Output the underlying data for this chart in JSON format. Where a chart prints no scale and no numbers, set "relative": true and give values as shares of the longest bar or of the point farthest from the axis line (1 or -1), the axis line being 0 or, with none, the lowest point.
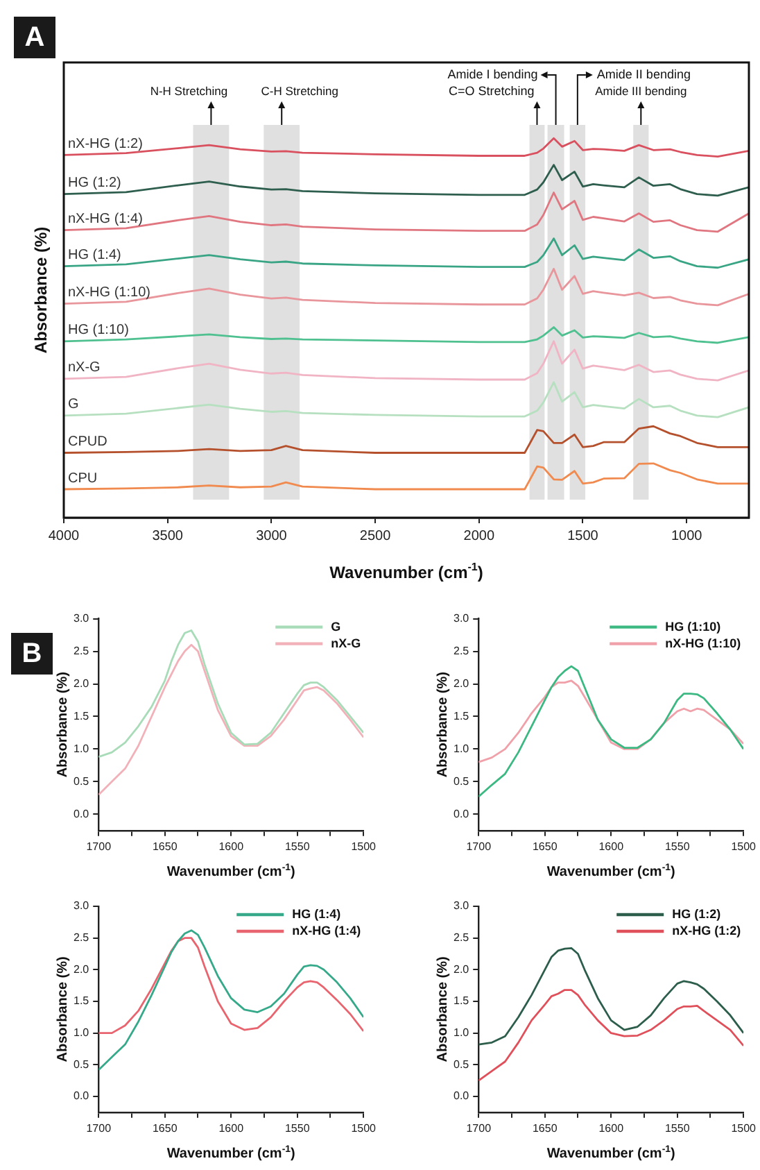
{
  "chart_data": [
    {
      "type": "line",
      "title": "A",
      "xlabel": "Wavenumber (cm$^{-1}$)",
      "ylabel": "Absorbance (%)",
      "relative": true,
      "x": [
        4000,
        3700,
        3450,
        3300,
        3150,
        3000,
        2930,
        2850,
        2500,
        2000,
        1780,
        1720,
        1690,
        1640,
        1600,
        1540,
        1500,
        1450,
        1400,
        1300,
        1230,
        1160,
        1080,
        1030,
        950,
        850,
        700
      ],
      "xlim": [
        4000,
        700
      ],
      "xticks": [
        4000,
        3500,
        3000,
        2500,
        2000,
        1500,
        1000
      ],
      "series": [
        {
          "name": "nX-HG (1:2)",
          "color": "#d9505f",
          "values": [
            0.956,
            0.961,
            0.974,
            0.982,
            0.971,
            0.965,
            0.966,
            0.962,
            0.958,
            0.954,
            0.954,
            0.962,
            0.973,
            1,
            0.978,
            0.993,
            0.969,
            0.972,
            0.971,
            0.967,
            0.982,
            0.969,
            0.971,
            0.964,
            0.956,
            0.952,
            0.967
          ]
        },
        {
          "name": "HG (1:2)",
          "color": "#2e5e4e",
          "values": [
            0.853,
            0.858,
            0.876,
            0.886,
            0.873,
            0.865,
            0.866,
            0.861,
            0.855,
            0.851,
            0.851,
            0.865,
            0.884,
            0.93,
            0.89,
            0.912,
            0.873,
            0.879,
            0.876,
            0.871,
            0.897,
            0.875,
            0.879,
            0.866,
            0.853,
            0.849,
            0.871
          ]
        },
        {
          "name": "nX-HG (1:4)",
          "color": "#e07680",
          "values": [
            0.758,
            0.763,
            0.784,
            0.795,
            0.78,
            0.771,
            0.773,
            0.767,
            0.76,
            0.756,
            0.756,
            0.773,
            0.798,
            0.857,
            0.813,
            0.835,
            0.785,
            0.793,
            0.789,
            0.781,
            0.802,
            0.78,
            0.784,
            0.771,
            0.758,
            0.754,
            0.802
          ]
        },
        {
          "name": "HG (1:4)",
          "color": "#3aa585",
          "values": [
            0.663,
            0.668,
            0.683,
            0.692,
            0.681,
            0.673,
            0.675,
            0.67,
            0.665,
            0.661,
            0.661,
            0.674,
            0.692,
            0.736,
            0.692,
            0.718,
            0.682,
            0.688,
            0.685,
            0.679,
            0.707,
            0.685,
            0.689,
            0.676,
            0.663,
            0.659,
            0.681
          ]
        },
        {
          "name": "nX-HG (1:10)",
          "color": "#e8969b",
          "values": [
            0.564,
            0.569,
            0.592,
            0.604,
            0.588,
            0.578,
            0.58,
            0.574,
            0.566,
            0.562,
            0.562,
            0.578,
            0.601,
            0.656,
            0.601,
            0.637,
            0.59,
            0.597,
            0.593,
            0.586,
            0.593,
            0.579,
            0.582,
            0.573,
            0.564,
            0.56,
            0.59
          ]
        },
        {
          "name": "HG (1:10)",
          "color": "#4fc090",
          "values": [
            0.465,
            0.47,
            0.478,
            0.483,
            0.476,
            0.471,
            0.472,
            0.47,
            0.467,
            0.463,
            0.463,
            0.47,
            0.48,
            0.502,
            0.48,
            0.494,
            0.475,
            0.478,
            0.477,
            0.474,
            0.487,
            0.476,
            0.478,
            0.472,
            0.465,
            0.461,
            0.476
          ]
        },
        {
          "name": "nX-G",
          "color": "#f0b4c4",
          "values": [
            0.366,
            0.371,
            0.394,
            0.406,
            0.39,
            0.38,
            0.382,
            0.376,
            0.368,
            0.364,
            0.364,
            0.381,
            0.406,
            0.465,
            0.406,
            0.443,
            0.393,
            0.401,
            0.397,
            0.389,
            0.403,
            0.384,
            0.388,
            0.377,
            0.366,
            0.362,
            0.388
          ]
        },
        {
          "name": "G",
          "color": "#b6e0c0",
          "values": [
            0.269,
            0.274,
            0.289,
            0.298,
            0.287,
            0.279,
            0.281,
            0.276,
            0.271,
            0.267,
            0.267,
            0.282,
            0.304,
            0.357,
            0.306,
            0.331,
            0.291,
            0.297,
            0.294,
            0.288,
            0.313,
            0.291,
            0.295,
            0.282,
            0.269,
            0.265,
            0.291
          ]
        },
        {
          "name": "CPUD",
          "color": "#b5502c",
          "values": [
            0.171,
            0.173,
            0.176,
            0.181,
            0.176,
            0.178,
            0.189,
            0.178,
            0.171,
            0.171,
            0.171,
            0.231,
            0.228,
            0.197,
            0.197,
            0.219,
            0.186,
            0.189,
            0.199,
            0.199,
            0.235,
            0.241,
            0.222,
            0.215,
            0.197,
            0.186,
            0.186
          ]
        },
        {
          "name": "CPU",
          "color": "#f08a4e",
          "values": [
            0.075,
            0.077,
            0.08,
            0.085,
            0.08,
            0.082,
            0.093,
            0.082,
            0.075,
            0.075,
            0.075,
            0.135,
            0.132,
            0.101,
            0.1,
            0.123,
            0.09,
            0.093,
            0.103,
            0.104,
            0.142,
            0.143,
            0.125,
            0.118,
            0.101,
            0.09,
            0.09
          ]
        }
      ],
      "bands": [
        {
          "axis": "x",
          "from": 3377,
          "to": 3204,
          "label": "N-H Stretching",
          "color": "#e0e0e0"
        },
        {
          "axis": "x",
          "from": 3037,
          "to": 2864,
          "label": "C-H Stretching",
          "color": "#e0e0e0"
        },
        {
          "axis": "x",
          "from": 1757,
          "to": 1684,
          "label": "C=O Stretching",
          "color": "#e0e0e0"
        },
        {
          "axis": "x",
          "from": 1670,
          "to": 1590,
          "label": "Amide I bending",
          "color": "#e0e0e0"
        },
        {
          "axis": "x",
          "from": 1563,
          "to": 1488,
          "label": "Amide II bending",
          "color": "#e0e0e0"
        },
        {
          "axis": "x",
          "from": 1257,
          "to": 1183,
          "label": "Amide III bending",
          "color": "#e0e0e0"
        }
      ]
    },
    {
      "type": "line",
      "title": "B",
      "xlabel": "Wavenumber (cm$^{-1}$)",
      "ylabel": "Absorbance (%)",
      "legend": "top right",
      "x": [
        1700,
        1690,
        1680,
        1670,
        1660,
        1650,
        1645,
        1640,
        1635,
        1630,
        1625,
        1620,
        1610,
        1600,
        1590,
        1580,
        1570,
        1560,
        1550,
        1545,
        1540,
        1535,
        1530,
        1520,
        1510,
        1500
      ],
      "xlim": [
        1700,
        1500
      ],
      "xticks": [
        1700,
        {
          "value": 1675,
          "label": null
        },
        1650,
        {
          "value": 1625,
          "label": null
        },
        1600,
        {
          "value": 1575,
          "label": null
        },
        1550,
        {
          "value": 1525,
          "label": null
        },
        1500
      ],
      "ylim": [
        -0.25,
        3
      ],
      "yticks": [
        {
          "value": 0,
          "label": "0.0"
        },
        0.5,
        {
          "value": 1,
          "label": "1.0"
        },
        1.5,
        {
          "value": 2,
          "label": "2.0"
        },
        2.5,
        {
          "value": 3,
          "label": "3.0"
        }
      ],
      "series": [
        {
          "name": "G",
          "color": "#a8dcb8",
          "values": [
            0.88,
            0.95,
            1.1,
            1.35,
            1.65,
            2.05,
            2.35,
            2.6,
            2.78,
            2.82,
            2.65,
            2.3,
            1.7,
            1.25,
            1.07,
            1.08,
            1.25,
            1.55,
            1.85,
            1.98,
            2.02,
            2.02,
            1.95,
            1.75,
            1.5,
            1.25
          ]
        },
        {
          "name": "nX-G",
          "color": "#f2b0b8",
          "values": [
            0.3,
            0.5,
            0.7,
            1.05,
            1.5,
            1.95,
            2.15,
            2.35,
            2.5,
            2.6,
            2.5,
            2.2,
            1.6,
            1.2,
            1.05,
            1.05,
            1.2,
            1.45,
            1.75,
            1.9,
            1.93,
            1.95,
            1.9,
            1.7,
            1.45,
            1.18
          ]
        }
      ]
    },
    {
      "type": "line",
      "xlabel": "Wavenumber (cm$^{-1}$)",
      "ylabel": "Absorbance (%)",
      "legend": "top right",
      "x": [
        1700,
        1690,
        1680,
        1670,
        1660,
        1650,
        1645,
        1640,
        1635,
        1630,
        1625,
        1620,
        1610,
        1600,
        1590,
        1580,
        1570,
        1560,
        1550,
        1545,
        1540,
        1535,
        1530,
        1520,
        1510,
        1500
      ],
      "xlim": [
        1700,
        1500
      ],
      "xticks": [
        1700,
        {
          "value": 1675,
          "label": null
        },
        1650,
        {
          "value": 1625,
          "label": null
        },
        1600,
        {
          "value": 1575,
          "label": null
        },
        1550,
        {
          "value": 1525,
          "label": null
        },
        1500
      ],
      "ylim": [
        -0.25,
        3
      ],
      "yticks": [
        {
          "value": 0,
          "label": "0.0"
        },
        0.5,
        {
          "value": 1,
          "label": "1.0"
        },
        1.5,
        {
          "value": 2,
          "label": "2.0"
        },
        2.5,
        {
          "value": 3,
          "label": "3.0"
        }
      ],
      "series": [
        {
          "name": "HG (1:10)",
          "color": "#3cb882",
          "values": [
            0.27,
            0.45,
            0.62,
            0.95,
            1.35,
            1.75,
            1.95,
            2.1,
            2.2,
            2.27,
            2.2,
            1.95,
            1.45,
            1.15,
            1.02,
            1.02,
            1.15,
            1.4,
            1.75,
            1.85,
            1.85,
            1.84,
            1.78,
            1.55,
            1.3,
            1
          ]
        },
        {
          "name": "nX-HG (1:10)",
          "color": "#f0a0a8",
          "values": [
            0.8,
            0.87,
            1,
            1.25,
            1.55,
            1.8,
            1.95,
            2.02,
            2.02,
            2.05,
            1.97,
            1.8,
            1.45,
            1.1,
            1,
            1,
            1.15,
            1.4,
            1.58,
            1.62,
            1.58,
            1.62,
            1.6,
            1.45,
            1.3,
            1.08
          ]
        }
      ]
    },
    {
      "type": "line",
      "xlabel": "Wavenumber (cm$^{-1}$)",
      "ylabel": "Absorbance (%)",
      "legend": "top right",
      "x": [
        1700,
        1690,
        1680,
        1670,
        1660,
        1650,
        1645,
        1640,
        1635,
        1630,
        1625,
        1620,
        1610,
        1600,
        1590,
        1580,
        1570,
        1560,
        1550,
        1545,
        1540,
        1535,
        1530,
        1520,
        1510,
        1500
      ],
      "xlim": [
        1700,
        1500
      ],
      "xticks": [
        1700,
        {
          "value": 1675,
          "label": null
        },
        1650,
        {
          "value": 1625,
          "label": null
        },
        1600,
        {
          "value": 1575,
          "label": null
        },
        1550,
        {
          "value": 1525,
          "label": null
        },
        1500
      ],
      "ylim": [
        -0.25,
        3
      ],
      "yticks": [
        {
          "value": 0,
          "label": "0.0"
        },
        0.5,
        {
          "value": 1,
          "label": "1.0"
        },
        1.5,
        {
          "value": 2,
          "label": "2.0"
        },
        2.5,
        {
          "value": 3,
          "label": "3.0"
        }
      ],
      "series": [
        {
          "name": "HG (1:4)",
          "color": "#35a98a",
          "values": [
            0.42,
            0.62,
            0.82,
            1.18,
            1.6,
            2.05,
            2.28,
            2.45,
            2.57,
            2.62,
            2.55,
            2.35,
            1.9,
            1.55,
            1.37,
            1.33,
            1.42,
            1.62,
            1.92,
            2.05,
            2.07,
            2.06,
            2,
            1.8,
            1.55,
            1.25
          ]
        },
        {
          "name": "nX-HG (1:4)",
          "color": "#e8646e",
          "values": [
            1,
            1,
            1.12,
            1.35,
            1.7,
            2.1,
            2.3,
            2.45,
            2.5,
            2.5,
            2.35,
            2.05,
            1.5,
            1.15,
            1.05,
            1.08,
            1.25,
            1.5,
            1.72,
            1.8,
            1.82,
            1.8,
            1.72,
            1.52,
            1.3,
            1.03
          ]
        }
      ]
    },
    {
      "type": "line",
      "xlabel": "Wavenumber (cm$^{-1}$)",
      "ylabel": "Absorbance (%)",
      "legend": "top right",
      "x": [
        1700,
        1690,
        1680,
        1670,
        1660,
        1650,
        1645,
        1640,
        1635,
        1630,
        1625,
        1620,
        1610,
        1600,
        1590,
        1580,
        1570,
        1560,
        1550,
        1545,
        1540,
        1535,
        1530,
        1520,
        1510,
        1500
      ],
      "xlim": [
        1700,
        1500
      ],
      "xticks": [
        1700,
        {
          "value": 1675,
          "label": null
        },
        1650,
        {
          "value": 1625,
          "label": null
        },
        1600,
        {
          "value": 1575,
          "label": null
        },
        1550,
        {
          "value": 1525,
          "label": null
        },
        1500
      ],
      "ylim": [
        -0.25,
        3
      ],
      "yticks": [
        {
          "value": 0,
          "label": "0.0"
        },
        0.5,
        {
          "value": 1,
          "label": "1.0"
        },
        1.5,
        {
          "value": 2,
          "label": "2.0"
        },
        2.5,
        {
          "value": 3,
          "label": "3.0"
        }
      ],
      "series": [
        {
          "name": "HG (1:2)",
          "color": "#2d5e4c",
          "values": [
            0.82,
            0.85,
            0.95,
            1.25,
            1.6,
            2,
            2.2,
            2.3,
            2.33,
            2.34,
            2.25,
            2,
            1.55,
            1.2,
            1.05,
            1.1,
            1.28,
            1.55,
            1.78,
            1.82,
            1.8,
            1.77,
            1.7,
            1.5,
            1.28,
            1
          ]
        },
        {
          "name": "nX-HG (1:2)",
          "color": "#e0505a",
          "values": [
            0.25,
            0.4,
            0.55,
            0.85,
            1.2,
            1.45,
            1.58,
            1.62,
            1.68,
            1.68,
            1.6,
            1.45,
            1.2,
            1,
            0.95,
            0.96,
            1.05,
            1.2,
            1.38,
            1.42,
            1.42,
            1.43,
            1.35,
            1.2,
            1.05,
            0.8
          ]
        }
      ]
    }
  ]
}
